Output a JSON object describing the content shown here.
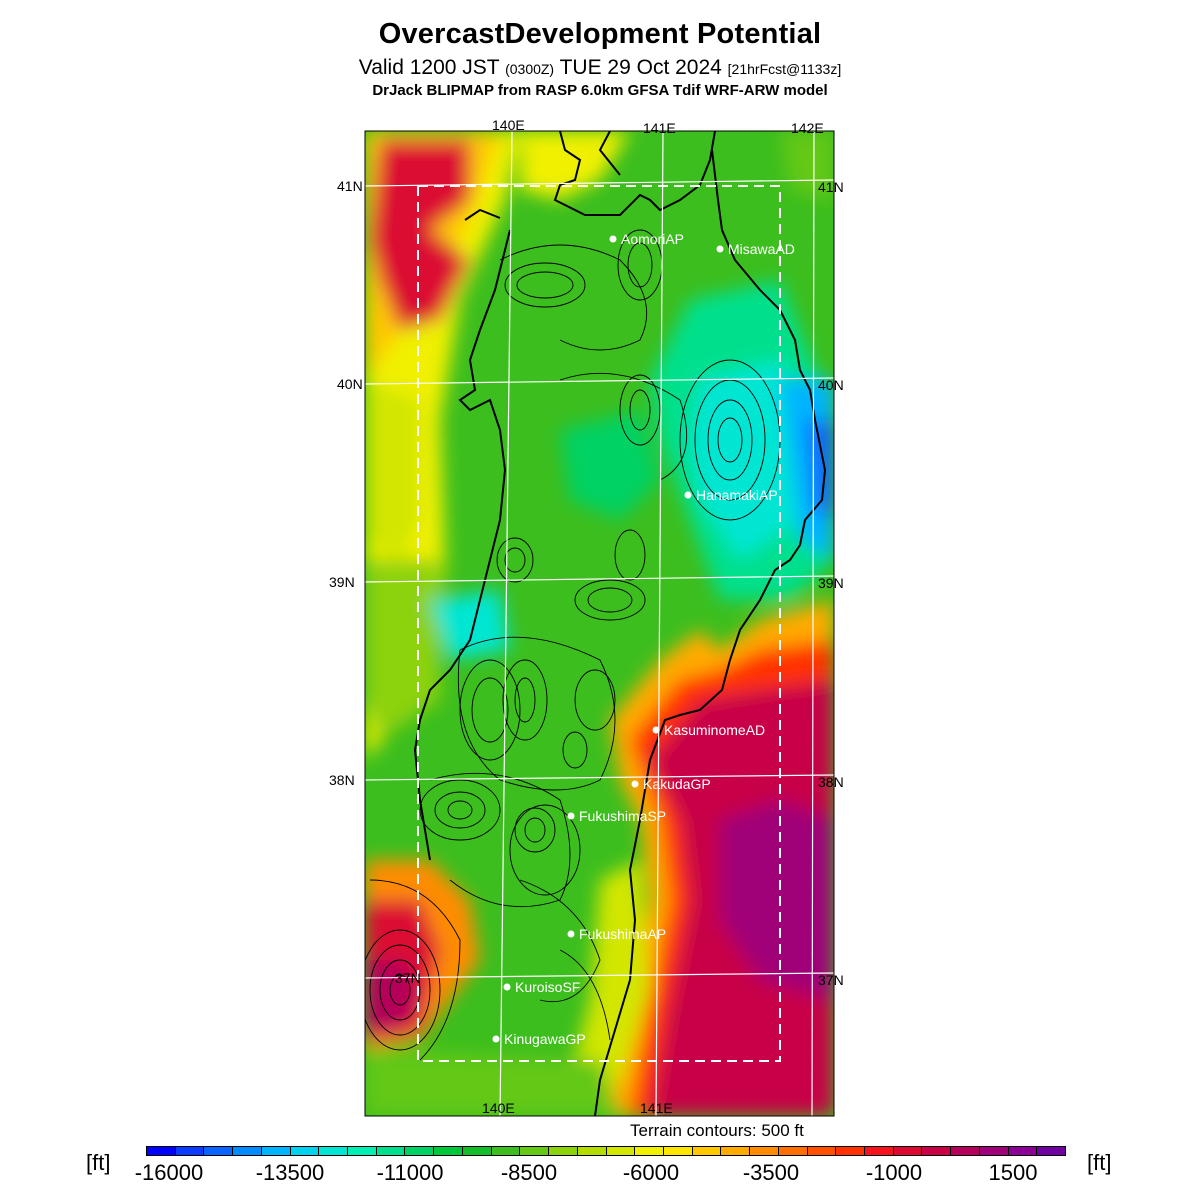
{
  "header": {
    "title": "OvercastDevelopment Potential",
    "valid_main": "Valid 1200 JST",
    "valid_zulu": "(0300Z)",
    "valid_date": "TUE 29 Oct 2024",
    "forecast_info": "[21hrFcst@1133z]",
    "model_line": "DrJack BLIPMAP from RASP 6.0km GFSA Tdif WRF-ARW model"
  },
  "map": {
    "lon_labels_top": [
      "140E",
      "141E",
      "142E"
    ],
    "lon_labels_bottom": [
      "140E",
      "141E"
    ],
    "lat_labels": [
      "41N",
      "40N",
      "39N",
      "38N",
      "37N"
    ],
    "stations": [
      {
        "name": "AomoriAP",
        "lat": 40.73,
        "lon": 140.69
      },
      {
        "name": "MisawaAD",
        "lat": 40.68,
        "lon": 141.4
      },
      {
        "name": "HanamakiAP",
        "lat": 39.43,
        "lon": 141.14
      },
      {
        "name": "KasuminomeAD",
        "lat": 38.24,
        "lon": 140.92
      },
      {
        "name": "KakudaGP",
        "lat": 37.97,
        "lon": 140.79
      },
      {
        "name": "FukushimaSP",
        "lat": 37.82,
        "lon": 140.46
      },
      {
        "name": "FukushimaAP",
        "lat": 37.23,
        "lon": 140.44
      },
      {
        "name": "KuroisoSF",
        "lat": 36.97,
        "lon": 140.07
      },
      {
        "name": "KinugawaGP",
        "lat": 36.7,
        "lon": 140.01
      }
    ],
    "terrain_note": "Terrain contours: 500 ft"
  },
  "colorbar": {
    "unit": "[ft]",
    "tick_labels": [
      "-16000",
      "-13500",
      "-11000",
      "-8500",
      "-6000",
      "-3500",
      "-1000",
      "1500"
    ],
    "colors": [
      "#0000ff",
      "#0a3cff",
      "#0a64ff",
      "#008cff",
      "#00b4ff",
      "#00d2f0",
      "#00e6d2",
      "#00f0b4",
      "#00e08c",
      "#00d264",
      "#00c83c",
      "#14be28",
      "#3cbe1e",
      "#64c814",
      "#8cd20a",
      "#b4dc00",
      "#d2e600",
      "#f0f000",
      "#ffe600",
      "#ffc800",
      "#ffaa00",
      "#ff8c00",
      "#ff6e00",
      "#ff5000",
      "#ff3200",
      "#f5141e",
      "#dc0a32",
      "#c80046",
      "#b4005a",
      "#a00078",
      "#8c0096",
      "#6e00a0"
    ]
  }
}
